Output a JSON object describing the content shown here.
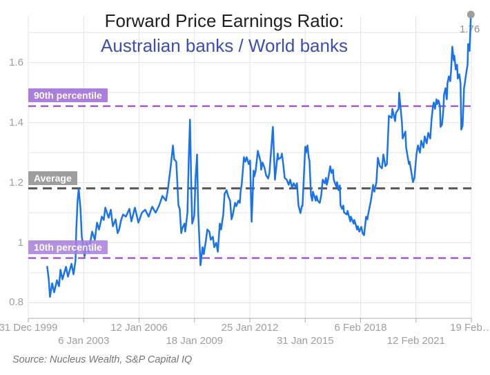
{
  "source_note": "Source: Nucleus Wealth, S&P Capital IQ",
  "colors": {
    "series_blue": "#1A73E8",
    "subtitle_blue": "#3D4DB7",
    "percentile_line_purple": "#9832DB",
    "percentile_badge_purple": "#A97EDC",
    "average_line_gray": "#555555",
    "average_badge_gray": "#9E9E9E",
    "axis_text_gray": "#9E9E9E",
    "grid_gray": "#E4E4E4",
    "axis_line_gray": "#ABABAB",
    "end_dot_gray": "#9E9E9E",
    "end_label_gray": "#8F8F8F",
    "title_black": "#1F1F1F"
  },
  "chart_data": {
    "type": "line",
    "title": "Forward Price Earnings Ratio:",
    "subtitle": "Australian banks / World banks",
    "xlabel": "",
    "ylabel": "",
    "xlim": [
      2000,
      2024.15
    ],
    "ylim": [
      0.75,
      1.76
    ],
    "grid": true,
    "legend_position": "none",
    "y_tick_labels": [
      "0.8",
      "1",
      "1.2",
      "1.4",
      "1.6"
    ],
    "y_grid_step": 0.1,
    "x_tick_labels": [
      "31 Dec 1999",
      "6 Jan 2003",
      "12 Jan 2006",
      "18 Jan 2009",
      "25 Jan 2012",
      "31 Jan 2015",
      "6 Feb 2018",
      "12 Feb 2021",
      "19 Feb…"
    ],
    "reference_lines": [
      {
        "label": "90th percentile",
        "value": 1.455,
        "kind": "percentile"
      },
      {
        "label": "Average",
        "value": 1.181,
        "kind": "average"
      },
      {
        "label": "10th percentile",
        "value": 0.949,
        "kind": "percentile"
      }
    ],
    "end_annotation": {
      "label": "1.76",
      "value": 1.76
    },
    "series": [
      {
        "name": "Australian banks / World banks forward PE ratio",
        "color": "#1A73E8",
        "points": [
          [
            2001.03,
            0.92
          ],
          [
            2001.11,
            0.88
          ],
          [
            2001.18,
            0.82
          ],
          [
            2001.3,
            0.865
          ],
          [
            2001.41,
            0.835
          ],
          [
            2001.56,
            0.875
          ],
          [
            2001.67,
            0.855
          ],
          [
            2001.75,
            0.91
          ],
          [
            2001.86,
            0.878
          ],
          [
            2002.05,
            0.92
          ],
          [
            2002.16,
            0.887
          ],
          [
            2002.35,
            0.93
          ],
          [
            2002.46,
            0.895
          ],
          [
            2002.57,
            0.94
          ],
          [
            2002.61,
            1.04
          ],
          [
            2002.68,
            1.14
          ],
          [
            2002.74,
            1.18
          ],
          [
            2002.84,
            1.115
          ],
          [
            2002.91,
            1.02
          ],
          [
            2002.99,
            0.99
          ],
          [
            2003.06,
            0.955
          ],
          [
            2003.17,
            1.0
          ],
          [
            2003.29,
            0.97
          ],
          [
            2003.47,
            1.037
          ],
          [
            2003.62,
            1.01
          ],
          [
            2003.74,
            1.067
          ],
          [
            2003.85,
            1.044
          ],
          [
            2004.0,
            1.087
          ],
          [
            2004.11,
            1.076
          ],
          [
            2004.19,
            1.117
          ],
          [
            2004.37,
            1.083
          ],
          [
            2004.49,
            1.11
          ],
          [
            2004.6,
            1.055
          ],
          [
            2004.75,
            1.078
          ],
          [
            2004.86,
            1.032
          ],
          [
            2004.94,
            1.044
          ],
          [
            2005.05,
            1.076
          ],
          [
            2005.16,
            1.094
          ],
          [
            2005.31,
            1.087
          ],
          [
            2005.5,
            1.113
          ],
          [
            2005.61,
            1.071
          ],
          [
            2005.8,
            1.117
          ],
          [
            2005.99,
            1.067
          ],
          [
            2006.18,
            1.1
          ],
          [
            2006.36,
            1.11
          ],
          [
            2006.55,
            1.087
          ],
          [
            2006.74,
            1.12
          ],
          [
            2006.93,
            1.1
          ],
          [
            2007.12,
            1.124
          ],
          [
            2007.3,
            1.156
          ],
          [
            2007.49,
            1.14
          ],
          [
            2007.6,
            1.18
          ],
          [
            2007.75,
            1.255
          ],
          [
            2007.87,
            1.324
          ],
          [
            2007.94,
            1.278
          ],
          [
            2008.05,
            1.27
          ],
          [
            2008.17,
            1.124
          ],
          [
            2008.24,
            1.113
          ],
          [
            2008.32,
            1.032
          ],
          [
            2008.39,
            1.05
          ],
          [
            2008.5,
            1.064
          ],
          [
            2008.54,
            1.037
          ],
          [
            2008.66,
            1.1
          ],
          [
            2008.73,
            1.28
          ],
          [
            2008.8,
            1.41
          ],
          [
            2008.88,
            1.15
          ],
          [
            2008.92,
            1.064
          ],
          [
            2009.03,
            1.09
          ],
          [
            2009.1,
            1.21
          ],
          [
            2009.18,
            1.294
          ],
          [
            2009.25,
            1.094
          ],
          [
            2009.37,
            0.925
          ],
          [
            2009.48,
            0.985
          ],
          [
            2009.55,
            0.962
          ],
          [
            2009.67,
            1.01
          ],
          [
            2009.74,
            1.044
          ],
          [
            2009.85,
            1.037
          ],
          [
            2009.93,
            1.01
          ],
          [
            2010.04,
            1.02
          ],
          [
            2010.12,
            0.985
          ],
          [
            2010.23,
            1.0
          ],
          [
            2010.31,
            0.97
          ],
          [
            2010.42,
            1.064
          ],
          [
            2010.49,
            1.044
          ],
          [
            2010.61,
            1.094
          ],
          [
            2010.68,
            1.163
          ],
          [
            2010.79,
            1.175
          ],
          [
            2010.87,
            1.156
          ],
          [
            2010.98,
            1.14
          ],
          [
            2011.06,
            1.078
          ],
          [
            2011.13,
            1.094
          ],
          [
            2011.25,
            1.133
          ],
          [
            2011.32,
            1.122
          ],
          [
            2011.43,
            1.14
          ],
          [
            2011.51,
            1.133
          ],
          [
            2011.55,
            1.17
          ],
          [
            2011.62,
            1.198
          ],
          [
            2011.73,
            1.285
          ],
          [
            2011.81,
            1.27
          ],
          [
            2011.88,
            1.285
          ],
          [
            2011.92,
            1.278
          ],
          [
            2011.99,
            1.262
          ],
          [
            2012.07,
            1.274
          ],
          [
            2012.15,
            1.07
          ],
          [
            2012.26,
            1.24
          ],
          [
            2012.3,
            1.221
          ],
          [
            2012.37,
            1.239
          ],
          [
            2012.49,
            1.306
          ],
          [
            2012.64,
            1.27
          ],
          [
            2012.67,
            1.243
          ],
          [
            2012.75,
            1.267
          ],
          [
            2012.86,
            1.248
          ],
          [
            2012.94,
            1.225
          ],
          [
            2013.05,
            1.214
          ],
          [
            2013.12,
            1.232
          ],
          [
            2013.31,
            1.386
          ],
          [
            2013.42,
            1.21
          ],
          [
            2013.57,
            1.297
          ],
          [
            2013.61,
            1.278
          ],
          [
            2013.76,
            1.285
          ],
          [
            2013.8,
            1.297
          ],
          [
            2013.87,
            1.262
          ],
          [
            2013.95,
            1.216
          ],
          [
            2014.06,
            1.21
          ],
          [
            2014.17,
            1.193
          ],
          [
            2014.25,
            1.21
          ],
          [
            2014.36,
            1.182
          ],
          [
            2014.44,
            1.198
          ],
          [
            2014.55,
            1.186
          ],
          [
            2014.62,
            1.198
          ],
          [
            2014.7,
            1.124
          ],
          [
            2014.81,
            1.099
          ],
          [
            2014.89,
            1.124
          ],
          [
            2014.92,
            1.122
          ],
          [
            2015.07,
            1.32
          ],
          [
            2015.11,
            1.3
          ],
          [
            2015.19,
            1.324
          ],
          [
            2015.26,
            1.283
          ],
          [
            2015.3,
            1.274
          ],
          [
            2015.38,
            1.159
          ],
          [
            2015.45,
            1.14
          ],
          [
            2015.49,
            1.17
          ],
          [
            2015.64,
            1.14
          ],
          [
            2015.68,
            1.156
          ],
          [
            2015.75,
            1.14
          ],
          [
            2015.86,
            1.133
          ],
          [
            2015.94,
            1.159
          ],
          [
            2016.02,
            1.21
          ],
          [
            2016.13,
            1.198
          ],
          [
            2016.2,
            1.216
          ],
          [
            2016.24,
            1.193
          ],
          [
            2016.31,
            1.21
          ],
          [
            2016.43,
            1.255
          ],
          [
            2016.5,
            1.232
          ],
          [
            2016.58,
            1.243
          ],
          [
            2016.62,
            1.21
          ],
          [
            2016.69,
            1.198
          ],
          [
            2016.77,
            1.186
          ],
          [
            2016.8,
            1.202
          ],
          [
            2016.88,
            1.175
          ],
          [
            2016.95,
            1.191
          ],
          [
            2016.99,
            1.124
          ],
          [
            2017.07,
            1.113
          ],
          [
            2017.14,
            1.124
          ],
          [
            2017.18,
            1.101
          ],
          [
            2017.33,
            1.094
          ],
          [
            2017.37,
            1.106
          ],
          [
            2017.52,
            1.071
          ],
          [
            2017.55,
            1.087
          ],
          [
            2017.7,
            1.064
          ],
          [
            2017.74,
            1.076
          ],
          [
            2017.82,
            1.06
          ],
          [
            2017.89,
            1.044
          ],
          [
            2017.93,
            1.055
          ],
          [
            2018.01,
            1.037
          ],
          [
            2018.12,
            1.053
          ],
          [
            2018.19,
            1.032
          ],
          [
            2018.27,
            1.025
          ],
          [
            2018.38,
            1.087
          ],
          [
            2018.45,
            1.078
          ],
          [
            2018.49,
            1.094
          ],
          [
            2018.64,
            1.14
          ],
          [
            2018.68,
            1.156
          ],
          [
            2018.76,
            1.193
          ],
          [
            2018.83,
            1.17
          ],
          [
            2018.94,
            1.202
          ],
          [
            2019.02,
            1.283
          ],
          [
            2019.13,
            1.255
          ],
          [
            2019.24,
            1.248
          ],
          [
            2019.32,
            1.294
          ],
          [
            2019.43,
            1.255
          ],
          [
            2019.51,
            1.262
          ],
          [
            2019.62,
            1.423
          ],
          [
            2019.77,
            1.416
          ],
          [
            2019.81,
            1.446
          ],
          [
            2019.96,
            1.405
          ],
          [
            2020.0,
            1.432
          ],
          [
            2020.15,
            1.446
          ],
          [
            2020.18,
            1.5
          ],
          [
            2020.33,
            1.4
          ],
          [
            2020.37,
            1.347
          ],
          [
            2020.52,
            1.37
          ],
          [
            2020.56,
            1.317
          ],
          [
            2020.71,
            1.262
          ],
          [
            2020.75,
            1.27
          ],
          [
            2020.93,
            1.202
          ],
          [
            2021.01,
            1.216
          ],
          [
            2021.12,
            1.294
          ],
          [
            2021.2,
            1.324
          ],
          [
            2021.31,
            1.3
          ],
          [
            2021.38,
            1.34
          ],
          [
            2021.5,
            1.317
          ],
          [
            2021.57,
            1.354
          ],
          [
            2021.68,
            1.331
          ],
          [
            2021.76,
            1.366
          ],
          [
            2021.87,
            1.347
          ],
          [
            2021.95,
            1.416
          ],
          [
            2022.02,
            1.455
          ],
          [
            2022.06,
            1.467
          ],
          [
            2022.13,
            1.446
          ],
          [
            2022.21,
            1.478
          ],
          [
            2022.25,
            1.462
          ],
          [
            2022.32,
            1.474
          ],
          [
            2022.4,
            1.455
          ],
          [
            2022.43,
            1.386
          ],
          [
            2022.51,
            1.393
          ],
          [
            2022.58,
            1.439
          ],
          [
            2022.62,
            1.493
          ],
          [
            2022.7,
            1.515
          ],
          [
            2022.77,
            1.478
          ],
          [
            2022.81,
            1.531
          ],
          [
            2022.88,
            1.554
          ],
          [
            2022.96,
            1.538
          ],
          [
            2023.0,
            1.57
          ],
          [
            2023.07,
            1.653
          ],
          [
            2023.15,
            1.607
          ],
          [
            2023.18,
            1.623
          ],
          [
            2023.26,
            1.577
          ],
          [
            2023.33,
            1.593
          ],
          [
            2023.37,
            1.547
          ],
          [
            2023.45,
            1.561
          ],
          [
            2023.52,
            1.531
          ],
          [
            2023.56,
            1.377
          ],
          [
            2023.63,
            1.39
          ],
          [
            2023.71,
            1.515
          ],
          [
            2023.75,
            1.531
          ],
          [
            2023.82,
            1.561
          ],
          [
            2023.9,
            1.593
          ],
          [
            2023.93,
            1.662
          ],
          [
            2024.01,
            1.639
          ],
          [
            2024.08,
            1.76
          ]
        ]
      }
    ]
  }
}
